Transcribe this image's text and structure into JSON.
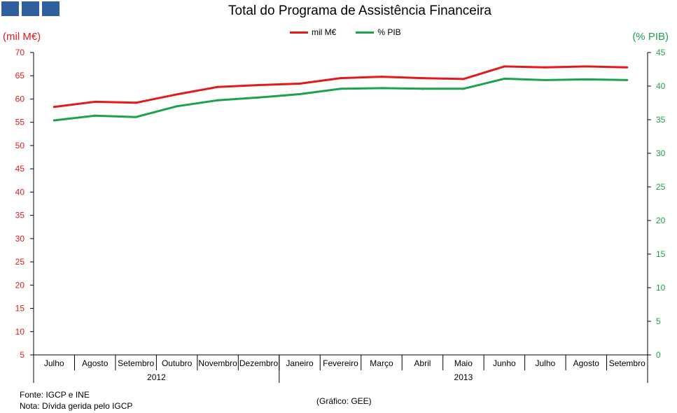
{
  "logo": {
    "squares": 3,
    "color": "#2f5f9e"
  },
  "colors": {
    "left_series": "#e31a1a",
    "right_series": "#1aa34a"
  },
  "footer": {
    "source": "Fonte: IGCP e INE",
    "note": "Nota: Dívida gerida pelo IGCP",
    "credit": "(Gráfico: GEE)"
  },
  "chart_data": {
    "type": "line",
    "title": "Total do Programa de Assistência Financeira",
    "ylabel_left": "(mil M€)",
    "ylabel_right": "(% PIB)",
    "categories": [
      "Julho",
      "Agosto",
      "Setembro",
      "Outubro",
      "Novembro",
      "Dezembro",
      "Janeiro",
      "Fevereiro",
      "Março",
      "Abril",
      "Maio",
      "Junho",
      "Julho",
      "Agosto",
      "Setembro"
    ],
    "groups": [
      {
        "label": "2012",
        "start": 0,
        "end": 5
      },
      {
        "label": "2013",
        "start": 6,
        "end": 14
      }
    ],
    "ylim_left": [
      5,
      70
    ],
    "yticks_left": [
      5,
      10,
      15,
      20,
      25,
      30,
      35,
      40,
      45,
      50,
      55,
      60,
      65,
      70
    ],
    "ylim_right": [
      0,
      45
    ],
    "yticks_right": [
      0,
      5,
      10,
      15,
      20,
      25,
      30,
      35,
      40,
      45
    ],
    "series": [
      {
        "name": "mil M€",
        "axis": "left",
        "color": "#e31a1a",
        "values": [
          58.3,
          59.4,
          59.2,
          61.0,
          62.6,
          63.0,
          63.3,
          64.5,
          64.8,
          64.5,
          64.3,
          67.0,
          66.8,
          67.0,
          66.8
        ]
      },
      {
        "name": "% PIB",
        "axis": "right",
        "color": "#1aa34a",
        "values": [
          34.9,
          35.6,
          35.4,
          37.0,
          37.9,
          38.3,
          38.8,
          39.6,
          39.7,
          39.6,
          39.6,
          41.1,
          40.9,
          41.0,
          40.9
        ]
      }
    ],
    "legend": "top-center",
    "grid": false
  }
}
